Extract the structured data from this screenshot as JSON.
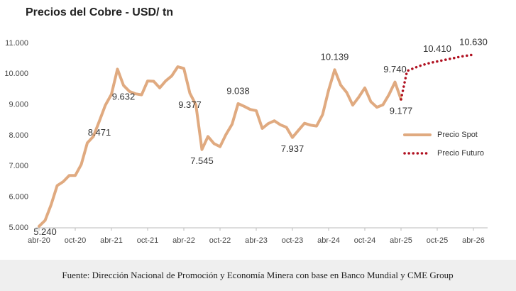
{
  "chart_data": {
    "type": "line",
    "title": "Precios del Cobre - USD/ tn",
    "source": "Fuente: Dirección Nacional de Promoción y Economía Minera con base en Banco Mundial y CME Group",
    "categories": [
      "abr-20",
      null,
      null,
      null,
      null,
      null,
      "oct-20",
      null,
      null,
      null,
      null,
      null,
      "abr-21",
      null,
      null,
      null,
      null,
      null,
      "oct-21",
      null,
      null,
      null,
      null,
      null,
      "abr-22",
      null,
      null,
      null,
      null,
      null,
      "oct-22",
      null,
      null,
      null,
      null,
      null,
      "abr-23",
      null,
      null,
      null,
      null,
      null,
      "oct-23",
      null,
      null,
      null,
      null,
      null,
      "abr-24",
      null,
      null,
      null,
      null,
      null,
      "oct-24",
      null,
      null,
      null,
      null,
      null,
      "abr-25",
      null,
      null,
      null,
      null,
      null,
      "oct-25",
      null,
      null,
      null,
      null,
      null,
      "abr-26"
    ],
    "ylim": [
      5000,
      11000
    ],
    "yticks": [
      {
        "value": 5000,
        "label": "5.000"
      },
      {
        "value": 6000,
        "label": "6.000"
      },
      {
        "value": 7000,
        "label": "7.000"
      },
      {
        "value": 8000,
        "label": "8.000"
      },
      {
        "value": 9000,
        "label": "9.000"
      },
      {
        "value": 10000,
        "label": "10.000"
      },
      {
        "value": 11000,
        "label": "11.000"
      }
    ],
    "grid": false,
    "legend": "right",
    "series": [
      {
        "name": "Precio Spot",
        "color": "#e0aa80",
        "style": "solid",
        "values": [
          5050,
          5240,
          5750,
          6370,
          6500,
          6700,
          6700,
          7060,
          7760,
          7970,
          8471,
          8990,
          9340,
          10160,
          9632,
          9434,
          9358,
          9324,
          9774,
          9765,
          9551,
          9780,
          9941,
          10238,
          10183,
          9377,
          9000,
          7545,
          7970,
          7740,
          7640,
          8040,
          8370,
          9038,
          8950,
          8850,
          8810,
          8230,
          8390,
          8480,
          8350,
          8270,
          7937,
          8170,
          8400,
          8340,
          8310,
          8680,
          9480,
          10139,
          9640,
          9400,
          8990,
          9250,
          9550,
          9100,
          8920,
          9000,
          9330,
          9740,
          9177,
          null,
          null,
          null,
          null,
          null,
          null,
          null,
          null,
          null,
          null,
          null,
          null
        ],
        "value_labels": [
          null,
          "5.240",
          null,
          null,
          null,
          null,
          null,
          null,
          null,
          null,
          "8.471",
          null,
          null,
          null,
          "9.632",
          null,
          null,
          null,
          null,
          null,
          null,
          null,
          null,
          null,
          null,
          "9.377",
          null,
          "7.545",
          null,
          null,
          null,
          null,
          null,
          "9.038",
          null,
          null,
          null,
          null,
          null,
          null,
          null,
          null,
          "7.937",
          null,
          null,
          null,
          null,
          null,
          null,
          "10.139",
          null,
          null,
          null,
          null,
          null,
          null,
          null,
          null,
          null,
          "9.740",
          "9.177",
          null,
          null,
          null,
          null,
          null,
          null,
          null,
          null,
          null,
          null,
          null,
          null
        ]
      },
      {
        "name": "Precio Futuro",
        "color": "#b01020",
        "style": "dotted",
        "values": [
          null,
          null,
          null,
          null,
          null,
          null,
          null,
          null,
          null,
          null,
          null,
          null,
          null,
          null,
          null,
          null,
          null,
          null,
          null,
          null,
          null,
          null,
          null,
          null,
          null,
          null,
          null,
          null,
          null,
          null,
          null,
          null,
          null,
          null,
          null,
          null,
          null,
          null,
          null,
          null,
          null,
          null,
          null,
          null,
          null,
          null,
          null,
          null,
          null,
          null,
          null,
          null,
          null,
          null,
          null,
          null,
          null,
          null,
          null,
          null,
          9177,
          10100,
          10180,
          10260,
          10320,
          10370,
          10410,
          10450,
          10490,
          10530,
          10570,
          10600,
          10630
        ],
        "value_labels": [
          null,
          null,
          null,
          null,
          null,
          null,
          null,
          null,
          null,
          null,
          null,
          null,
          null,
          null,
          null,
          null,
          null,
          null,
          null,
          null,
          null,
          null,
          null,
          null,
          null,
          null,
          null,
          null,
          null,
          null,
          null,
          null,
          null,
          null,
          null,
          null,
          null,
          null,
          null,
          null,
          null,
          null,
          null,
          null,
          null,
          null,
          null,
          null,
          null,
          null,
          null,
          null,
          null,
          null,
          null,
          null,
          null,
          null,
          null,
          null,
          null,
          null,
          null,
          null,
          null,
          null,
          "10.410",
          null,
          null,
          null,
          null,
          null,
          "10.630"
        ]
      }
    ]
  }
}
